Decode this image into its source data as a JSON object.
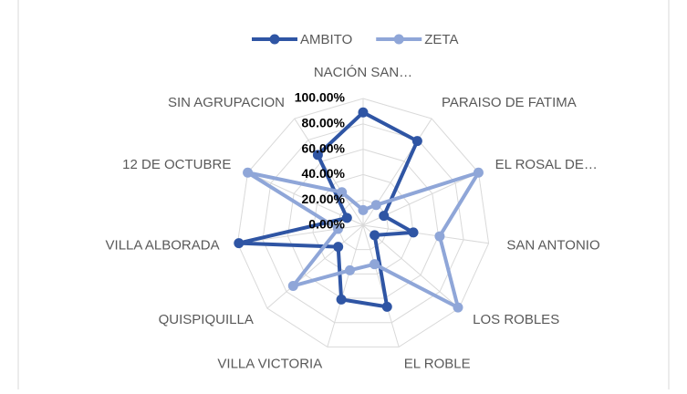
{
  "chart_data": {
    "type": "radar",
    "categories": [
      "NACIÓN SAN…",
      "PARAISO DE FATIMA",
      "EL ROSAL DE…",
      "SAN ANTONIO",
      "LOS ROBLES",
      "EL ROBLE",
      "VILLA VICTORIA",
      "QUISPIQUILLA",
      "VILLA ALBORADA",
      "12 DE OCTUBRE",
      "SIN AGRUPACION"
    ],
    "series": [
      {
        "name": "AMBITO",
        "color": "#2f55a4",
        "values": [
          89,
          79,
          18,
          40,
          12,
          67,
          61,
          26,
          99,
          14,
          66
        ]
      },
      {
        "name": "ZETA",
        "color": "#8fa6d8",
        "values": [
          12,
          19,
          100,
          61,
          99,
          32,
          37,
          73,
          20,
          100,
          31
        ]
      }
    ],
    "ylim": [
      0,
      100
    ],
    "yticks": [
      {
        "value": 0,
        "label": "0.00%"
      },
      {
        "value": 20,
        "label": "20.00%"
      },
      {
        "value": 40,
        "label": "40.00%"
      },
      {
        "value": 60,
        "label": "60.00%"
      },
      {
        "value": 80,
        "label": "80.00%"
      },
      {
        "value": 100,
        "label": "100.00%"
      }
    ],
    "grid": true,
    "legend": "top"
  }
}
